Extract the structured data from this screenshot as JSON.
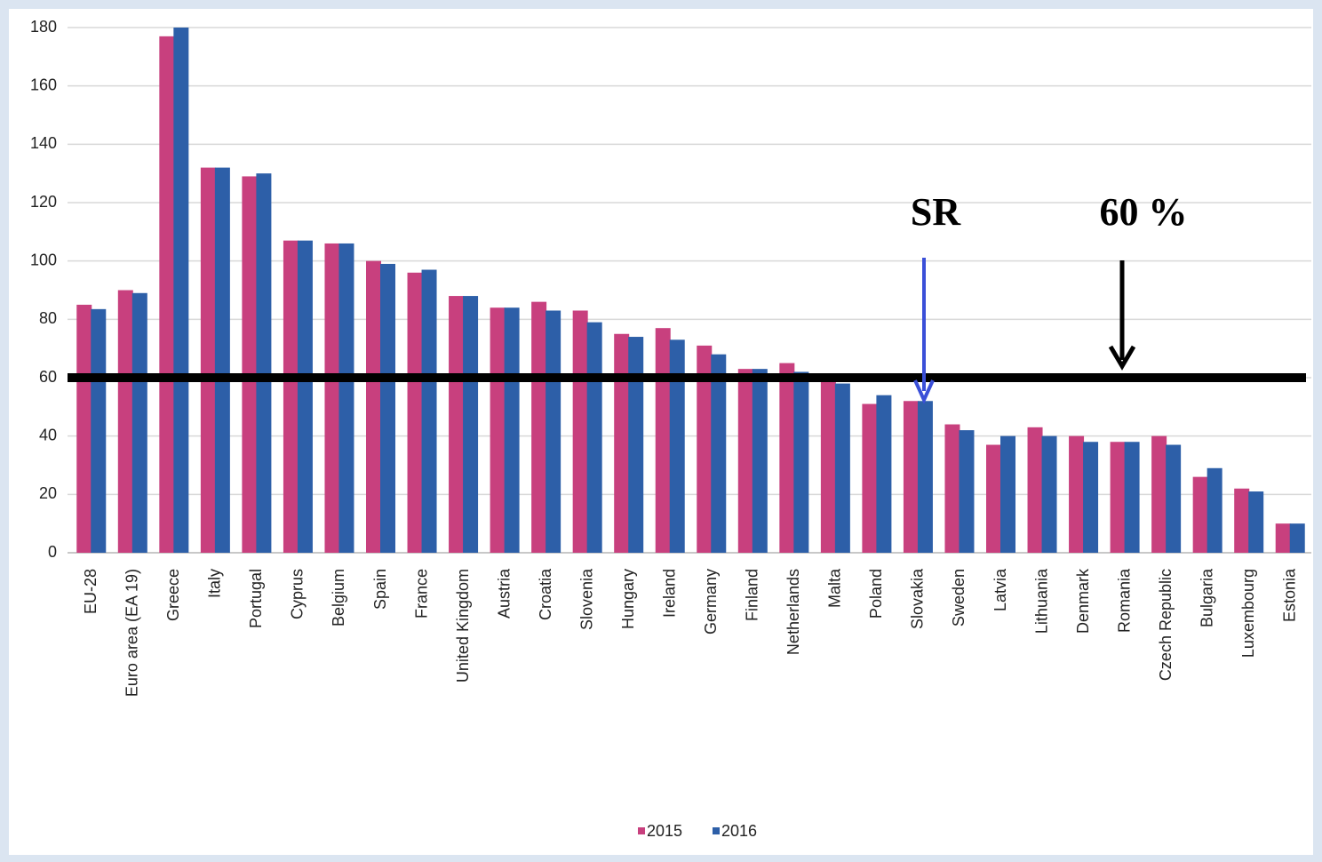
{
  "chart_data": {
    "type": "bar",
    "categories": [
      "EU-28",
      "Euro area (EA 19)",
      "Greece",
      "Italy",
      "Portugal",
      "Cyprus",
      "Belgium",
      "Spain",
      "France",
      "United Kingdom",
      "Austria",
      "Croatia",
      "Slovenia",
      "Hungary",
      "Ireland",
      "Germany",
      "Finland",
      "Netherlands",
      "Malta",
      "Poland",
      "Slovakia",
      "Sweden",
      "Latvia",
      "Lithuania",
      "Denmark",
      "Romania",
      "Czech Republic",
      "Bulgaria",
      "Luxembourg",
      "Estonia"
    ],
    "series": [
      {
        "name": "2015",
        "color": "#c8407e",
        "values": [
          85,
          90,
          177,
          132,
          129,
          107,
          106,
          100,
          96,
          88,
          84,
          86,
          83,
          75,
          77,
          71,
          63,
          65,
          60,
          51,
          52,
          44,
          37,
          43,
          40,
          38,
          40,
          26,
          22,
          10
        ]
      },
      {
        "name": "2016",
        "color": "#2d5fa8",
        "values": [
          83.5,
          89,
          180,
          132,
          130,
          107,
          106,
          99,
          97,
          88,
          84,
          83,
          79,
          74,
          73,
          68,
          63,
          62,
          58,
          54,
          52,
          42,
          40,
          40,
          38,
          38,
          37,
          29,
          21,
          10
        ]
      }
    ],
    "ylim": [
      0,
      180
    ],
    "yticks": [
      0,
      20,
      40,
      60,
      80,
      100,
      120,
      140,
      160,
      180
    ],
    "grid": true,
    "reference_value": 60,
    "annotations": [
      "SR",
      "60 %"
    ],
    "legend": "bottom"
  }
}
